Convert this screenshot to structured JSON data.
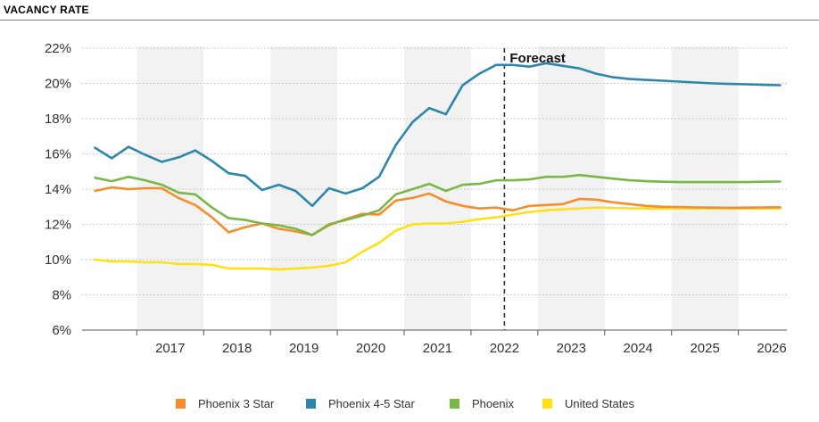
{
  "header": {
    "title": "VACANCY RATE"
  },
  "chart_data": {
    "type": "line",
    "title": "VACANCY RATE",
    "xlabel": "",
    "ylabel": "",
    "ylim": [
      6,
      22
    ],
    "yticks": [
      "6%",
      "8%",
      "10%",
      "12%",
      "14%",
      "16%",
      "18%",
      "20%",
      "22%"
    ],
    "year_labels": [
      "2017",
      "2018",
      "2019",
      "2020",
      "2021",
      "2022",
      "2023",
      "2024",
      "2025",
      "2026"
    ],
    "forecast_label": "Forecast",
    "forecast_start": "2022Q3",
    "grid": "horizontal dotted",
    "legend_position": "bottom",
    "x": [
      "2016Q2",
      "2016Q3",
      "2016Q4",
      "2017Q1",
      "2017Q2",
      "2017Q3",
      "2017Q4",
      "2018Q1",
      "2018Q2",
      "2018Q3",
      "2018Q4",
      "2019Q1",
      "2019Q2",
      "2019Q3",
      "2019Q4",
      "2020Q1",
      "2020Q2",
      "2020Q3",
      "2020Q4",
      "2021Q1",
      "2021Q2",
      "2021Q3",
      "2021Q4",
      "2022Q1",
      "2022Q2",
      "2022Q3",
      "2022Q4",
      "2023Q1",
      "2023Q2",
      "2023Q3",
      "2023Q4",
      "2024Q1",
      "2024Q2",
      "2024Q3",
      "2024Q4",
      "2025Q1",
      "2025Q2",
      "2025Q3",
      "2025Q4",
      "2026Q1",
      "2026Q2",
      "2026Q3"
    ],
    "series": [
      {
        "name": "Phoenix 3 Star",
        "color": "#f28e2b",
        "values": [
          13.9,
          14.1,
          14.0,
          14.05,
          14.05,
          13.5,
          13.1,
          12.4,
          11.55,
          11.85,
          12.05,
          11.75,
          11.6,
          11.4,
          11.95,
          12.3,
          12.6,
          12.55,
          13.35,
          13.5,
          13.75,
          13.3,
          13.05,
          12.9,
          12.95,
          12.8,
          13.05,
          13.1,
          13.15,
          13.45,
          13.4,
          13.25,
          13.15,
          13.05,
          13.0,
          12.98,
          12.96,
          12.95,
          12.94,
          12.95,
          12.96,
          12.97
        ]
      },
      {
        "name": "Phoenix 4-5 Star",
        "color": "#2e86ab",
        "values": [
          16.35,
          15.75,
          16.4,
          15.95,
          15.55,
          15.8,
          16.2,
          15.6,
          14.9,
          14.75,
          13.95,
          14.25,
          13.9,
          13.05,
          14.05,
          13.75,
          14.05,
          14.7,
          16.5,
          17.8,
          18.6,
          18.25,
          19.9,
          20.55,
          21.05,
          21.05,
          20.95,
          21.15,
          21.0,
          20.85,
          20.55,
          20.35,
          20.25,
          20.2,
          20.15,
          20.1,
          20.05,
          20.0,
          19.97,
          19.95,
          19.92,
          19.9
        ]
      },
      {
        "name": "Phoenix",
        "color": "#7ab648",
        "values": [
          14.65,
          14.45,
          14.7,
          14.5,
          14.25,
          13.8,
          13.7,
          12.95,
          12.35,
          12.25,
          12.05,
          11.95,
          11.75,
          11.4,
          12.0,
          12.25,
          12.5,
          12.8,
          13.7,
          14.0,
          14.3,
          13.9,
          14.25,
          14.3,
          14.5,
          14.5,
          14.55,
          14.7,
          14.7,
          14.8,
          14.7,
          14.6,
          14.5,
          14.45,
          14.42,
          14.4,
          14.4,
          14.4,
          14.4,
          14.4,
          14.42,
          14.43
        ]
      },
      {
        "name": "United States",
        "color": "#ffe014",
        "values": [
          10.0,
          9.9,
          9.9,
          9.85,
          9.85,
          9.75,
          9.75,
          9.7,
          9.5,
          9.5,
          9.5,
          9.45,
          9.5,
          9.55,
          9.65,
          9.85,
          10.45,
          10.95,
          11.65,
          12.0,
          12.05,
          12.05,
          12.15,
          12.3,
          12.4,
          12.55,
          12.7,
          12.8,
          12.85,
          12.9,
          12.95,
          12.93,
          12.91,
          12.9,
          12.9,
          12.9,
          12.9,
          12.9,
          12.9,
          12.9,
          12.9,
          12.9
        ]
      }
    ]
  }
}
